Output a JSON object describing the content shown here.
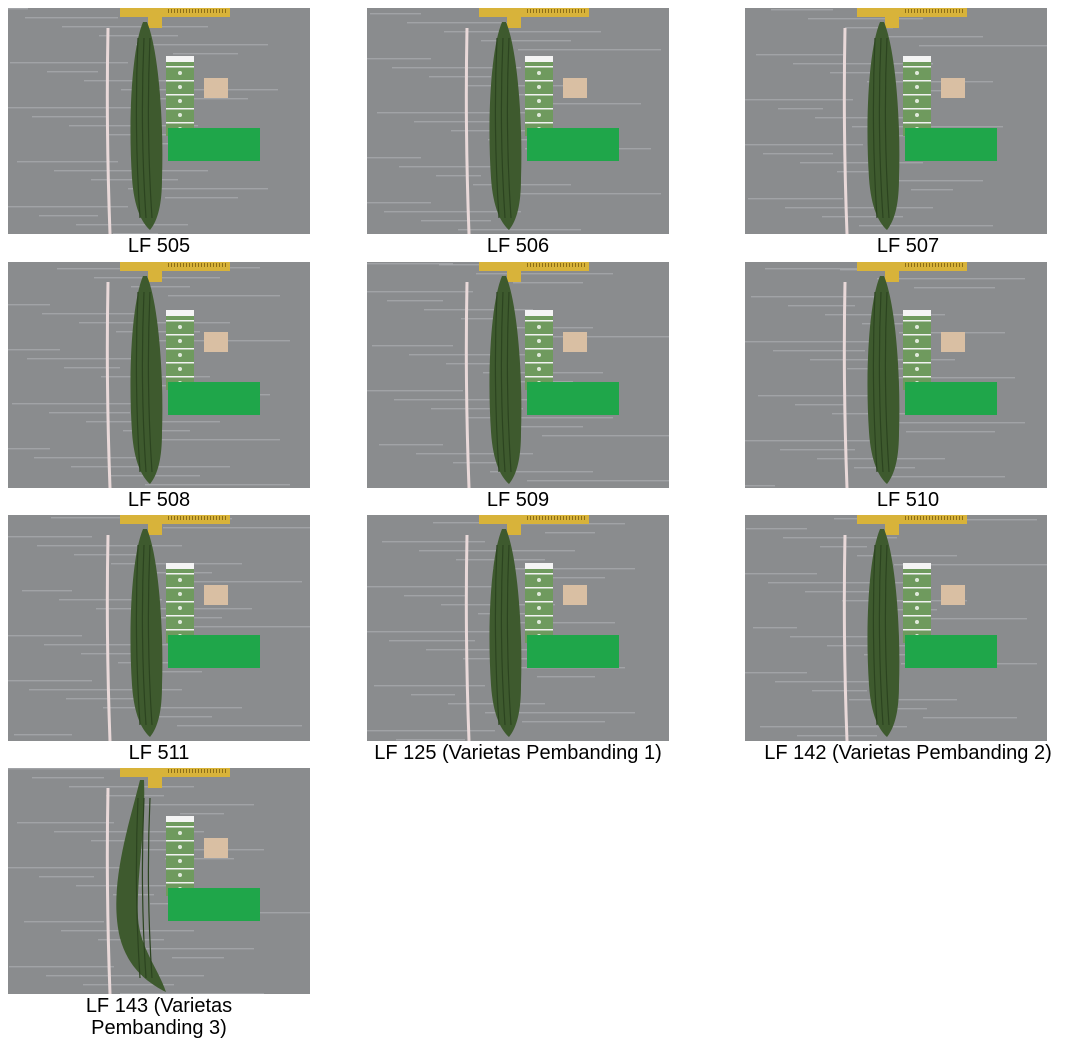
{
  "photos": [
    {
      "caption": "LF 505",
      "tag": "LF 505",
      "shape": "straight"
    },
    {
      "caption": "LF 506",
      "tag": "LF 506",
      "shape": "straight"
    },
    {
      "caption": "LF 507",
      "tag": "LF 507",
      "shape": "straight"
    },
    {
      "caption": "LF 508",
      "tag": "LF 508",
      "shape": "straight"
    },
    {
      "caption": "LF 509",
      "tag": "LF 509",
      "shape": "straight"
    },
    {
      "caption": "LF 510",
      "tag": "LF 510",
      "shape": "straight"
    },
    {
      "caption": "LF 511",
      "tag": "LF 511",
      "shape": "straight"
    },
    {
      "caption": "LF 125 (Varietas Pembanding 1)",
      "tag": "LF 125",
      "shape": "straight"
    },
    {
      "caption": "LF 142 (Varietas Pembanding 2)",
      "tag": "LF 142",
      "shape": "straight"
    },
    {
      "caption": "LF 143 (Varietas Pembanding 3)",
      "tag": "LF 143",
      "shape": "curved"
    }
  ],
  "colors": {
    "board": "#8a8c8e",
    "board_streak": "#b5b7b9",
    "fruit": "#3e5a2e",
    "fruit_ridge": "#2c4420",
    "color_chart": "#6f9a5e",
    "green_card": "#1fa64a",
    "caliper": "#d8b33a",
    "label_card": "#d9bfa3",
    "tape": "#e9d9d9"
  }
}
